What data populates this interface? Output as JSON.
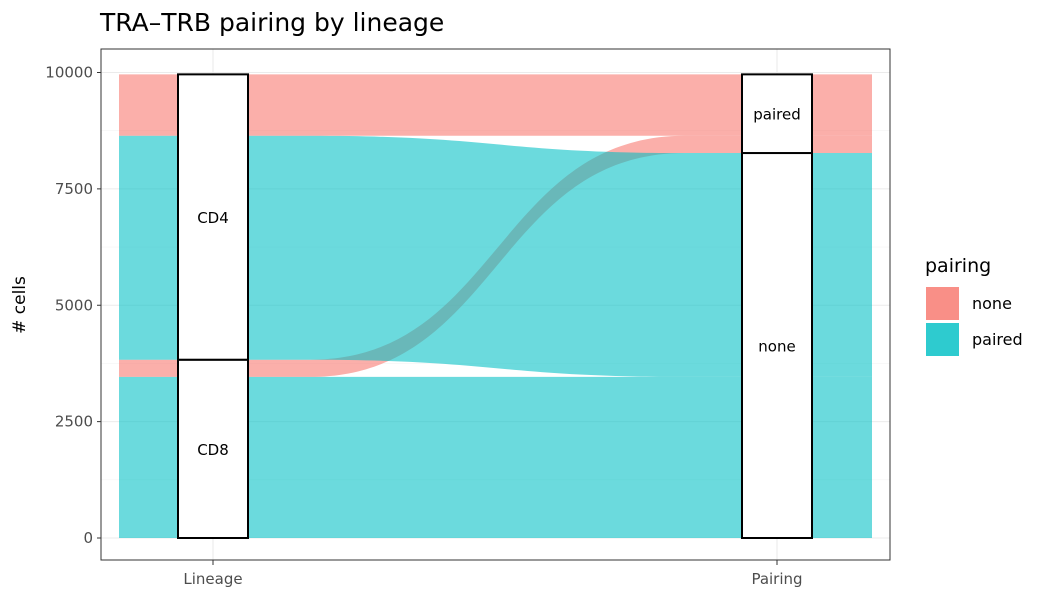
{
  "chart_data": {
    "type": "alluvial",
    "title": "TRA–TRB pairing by lineage",
    "xlabel": "",
    "ylabel": "# cells",
    "axes": [
      "Lineage",
      "Pairing"
    ],
    "ylim": [
      0,
      10000
    ],
    "y_ticks": [
      0,
      2500,
      5000,
      7500,
      10000
    ],
    "grid": true,
    "legend": {
      "title": "pairing",
      "position": "right",
      "items": [
        {
          "label": "none",
          "color": "#F8766D"
        },
        {
          "label": "paired",
          "color": "#00BFC4"
        }
      ]
    },
    "strata": {
      "Lineage": [
        {
          "label": "CD8",
          "value": 3830
        },
        {
          "label": "CD4",
          "value": 6130
        }
      ],
      "Pairing": [
        {
          "label": "none",
          "value": 8270
        },
        {
          "label": "paired",
          "value": 1690
        }
      ]
    },
    "flows": [
      {
        "lineage": "CD8",
        "pairing_group": "none",
        "fill": "paired",
        "value": 3460
      },
      {
        "lineage": "CD8",
        "pairing_group": "paired",
        "fill": "none",
        "value": 370
      },
      {
        "lineage": "CD4",
        "pairing_group": "none",
        "fill": "paired",
        "value": 4810
      },
      {
        "lineage": "CD4",
        "pairing_group": "paired",
        "fill": "none",
        "value": 1320
      }
    ]
  }
}
